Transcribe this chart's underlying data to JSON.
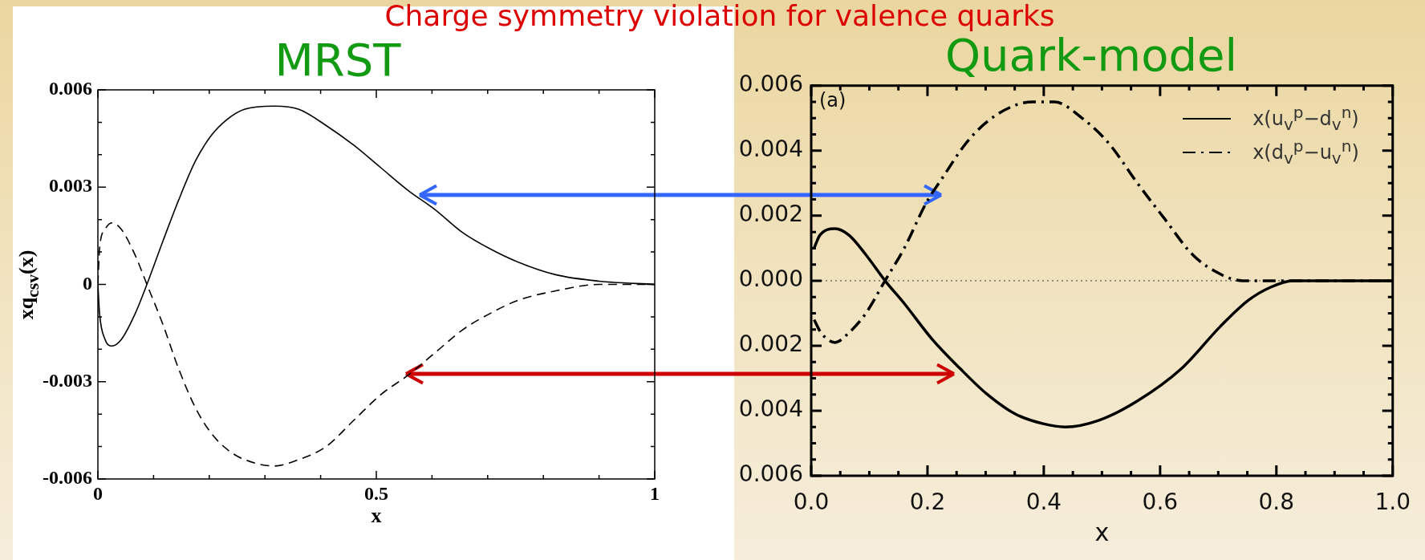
{
  "chart_data": [
    {
      "type": "line",
      "title": "Charge symmetry violation for valence quarks",
      "subtitle": "MRST",
      "xlabel": "x",
      "ylabel": "xq$_{csv}$(x)",
      "xlim": [
        0,
        1
      ],
      "ylim": [
        -0.006,
        0.006
      ],
      "xticks": [
        0,
        {
          "value": 0.1,
          "label": null
        },
        {
          "value": 0.2,
          "label": null
        },
        {
          "value": 0.3,
          "label": null
        },
        {
          "value": 0.4,
          "label": null
        },
        0.5,
        {
          "value": 0.6,
          "label": null
        },
        {
          "value": 0.7,
          "label": null
        },
        {
          "value": 0.8,
          "label": null
        },
        {
          "value": 0.9,
          "label": null
        },
        1
      ],
      "yticks": [
        -0.006,
        {
          "value": -0.005,
          "label": null
        },
        {
          "value": -0.004,
          "label": null
        },
        -0.003,
        {
          "value": -0.002,
          "label": null
        },
        {
          "value": -0.001,
          "label": null
        },
        0,
        {
          "value": 0.001,
          "label": null
        },
        {
          "value": 0.002,
          "label": null
        },
        0.003,
        {
          "value": 0.004,
          "label": null
        },
        {
          "value": 0.005,
          "label": null
        },
        0.006
      ],
      "x": [
        0,
        0.003,
        0.013,
        0.025,
        0.042,
        0.067,
        0.088,
        0.116,
        0.145,
        0.175,
        0.204,
        0.233,
        0.263,
        0.317,
        0.361,
        0.41,
        0.459,
        0.508,
        0.557,
        0.606,
        0.655,
        0.704,
        0.753,
        0.822,
        0.9,
        1
      ],
      "series": [
        {
          "color": "#000000",
          "line_style": "solid",
          "values": [
            0,
            -0.0009,
            -0.0017,
            -0.0019,
            -0.0017,
            -0.0009,
            0,
            0.0013,
            0.0026,
            0.0038,
            0.0046,
            0.0051,
            0.0054,
            0.0055,
            0.0054,
            0.0049,
            0.0043,
            0.0036,
            0.0029,
            0.0023,
            0.0016,
            0.0011,
            0.0007,
            0.0003,
            0.0001,
            0
          ]
        },
        {
          "color": "#000000",
          "line_style": "dashed",
          "values": [
            0,
            0.0011,
            0.0017,
            0.0019,
            0.0017,
            0.0009,
            0,
            -0.0012,
            -0.0026,
            -0.0038,
            -0.0046,
            -0.0051,
            -0.0054,
            -0.0056,
            -0.0054,
            -0.005,
            -0.0042,
            -0.0034,
            -0.0028,
            -0.0021,
            -0.0014,
            -0.0009,
            -0.0005,
            -0.0002,
            0,
            0
          ]
        }
      ]
    },
    {
      "type": "line",
      "title": "Quark-model",
      "xlabel": "x",
      "xlim": [
        0,
        1
      ],
      "ylim": [
        -0.006,
        0.006
      ],
      "legend": "top right",
      "annotations": [
        "(a)"
      ],
      "xticks": [
        {
          "value": 0,
          "label": "0.0"
        },
        {
          "value": 0.05,
          "label": null
        },
        {
          "value": 0.1,
          "label": null
        },
        {
          "value": 0.15,
          "label": null
        },
        0.2,
        {
          "value": 0.25,
          "label": null
        },
        {
          "value": 0.3,
          "label": null
        },
        {
          "value": 0.35,
          "label": null
        },
        0.4,
        {
          "value": 0.45,
          "label": null
        },
        {
          "value": 0.5,
          "label": null
        },
        {
          "value": 0.55,
          "label": null
        },
        0.6,
        {
          "value": 0.65,
          "label": null
        },
        {
          "value": 0.7,
          "label": null
        },
        {
          "value": 0.75,
          "label": null
        },
        0.8,
        {
          "value": 0.85,
          "label": null
        },
        {
          "value": 0.9,
          "label": null
        },
        {
          "value": 0.95,
          "label": null
        },
        {
          "value": 1,
          "label": "1.0"
        }
      ],
      "yticks": [
        {
          "value": -0.006,
          "label": "0.006"
        },
        {
          "value": -0.0055,
          "label": null
        },
        {
          "value": -0.005,
          "label": null
        },
        {
          "value": -0.0045,
          "label": null
        },
        {
          "value": -0.004,
          "label": "0.004"
        },
        {
          "value": -0.0035,
          "label": null
        },
        {
          "value": -0.003,
          "label": null
        },
        {
          "value": -0.0025,
          "label": null
        },
        {
          "value": -0.002,
          "label": "0.002"
        },
        {
          "value": -0.0015,
          "label": null
        },
        {
          "value": -0.001,
          "label": null
        },
        {
          "value": -0.0005,
          "label": null
        },
        {
          "value": 0,
          "label": "0.000"
        },
        {
          "value": 0.0005,
          "label": null
        },
        {
          "value": 0.001,
          "label": null
        },
        {
          "value": 0.0015,
          "label": null
        },
        0.002,
        {
          "value": 0.0025,
          "label": null
        },
        {
          "value": 0.003,
          "label": null
        },
        {
          "value": 0.0035,
          "label": null
        },
        0.004,
        {
          "value": 0.0045,
          "label": null
        },
        {
          "value": 0.005,
          "label": null
        },
        {
          "value": 0.0055,
          "label": null
        },
        0.006
      ],
      "ref_lines": [
        {
          "axis": "y",
          "value": 0,
          "color": "#555555",
          "line_style": "dotted"
        }
      ],
      "series": [
        {
          "name": "x(u$_{v}$$^{p}$−d$_{v}$$^{n}$)",
          "color": "#000000",
          "line_style": "solid",
          "x": [
            0.005,
            0.015,
            0.041,
            0.065,
            0.094,
            0.127,
            0.16,
            0.208,
            0.256,
            0.303,
            0.351,
            0.399,
            0.437,
            0.494,
            0.561,
            0.637,
            0.704,
            0.752,
            0.79,
            0.828,
            0.9,
            1
          ],
          "values": [
            0.001,
            0.0014,
            0.0016,
            0.0014,
            0.0008,
            0,
            -0.0007,
            -0.0018,
            -0.0027,
            -0.0035,
            -0.0041,
            -0.0044,
            -0.0045,
            -0.0043,
            -0.0037,
            -0.0027,
            -0.0014,
            -0.0006,
            -0.0002,
            0,
            0,
            0
          ]
        },
        {
          "name": "x(d$_{v}$$^{p}$−u$_{v}$$^{n}$)",
          "color": "#000000",
          "line_style": "dashdot",
          "x": [
            0.005,
            0.017,
            0.041,
            0.065,
            0.094,
            0.127,
            0.16,
            0.198,
            0.227,
            0.265,
            0.303,
            0.351,
            0.382,
            0.418,
            0.466,
            0.513,
            0.561,
            0.608,
            0.656,
            0.704,
            0.742,
            0.8,
            0.9,
            1
          ],
          "values": [
            -0.0012,
            -0.0016,
            -0.0019,
            -0.0016,
            -0.001,
            0,
            0.001,
            0.0024,
            0.0032,
            0.0042,
            0.0049,
            0.0054,
            0.0055,
            0.0055,
            0.005,
            0.0042,
            0.003,
            0.0019,
            0.0008,
            0.0002,
            0,
            0,
            0,
            0
          ]
        }
      ]
    }
  ]
}
